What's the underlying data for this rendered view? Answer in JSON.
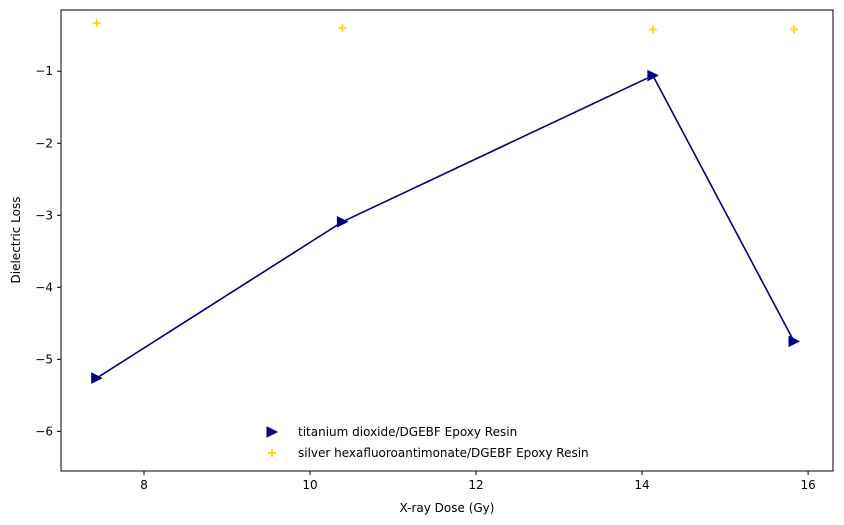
{
  "chart_data": {
    "type": "scatter",
    "xlabel": "X-ray Dose (Gy)",
    "ylabel": "Dielectric Loss",
    "xlim": [
      7.0,
      16.3
    ],
    "ylim": [
      -6.55,
      -0.15
    ],
    "xticks": [
      8,
      10,
      12,
      14,
      16
    ],
    "yticks": [
      -6,
      -5,
      -4,
      -3,
      -2,
      -1
    ],
    "xtick_labels": [
      "8",
      "10",
      "12",
      "14",
      "16"
    ],
    "ytick_labels": [
      "−6",
      "−5",
      "−4",
      "−3",
      "−2",
      "−1"
    ],
    "grid": false,
    "legend_position": "lower-center",
    "series": [
      {
        "name": "titanium dioxide/DGEBF Epoxy Resin",
        "marker": "triangle-right",
        "line": true,
        "color": "#000080",
        "x": [
          7.43,
          10.39,
          14.13,
          15.83
        ],
        "y": [
          -5.26,
          -3.09,
          -1.06,
          -4.75
        ]
      },
      {
        "name": "silver hexafluoroantimonate/DGEBF Epoxy Resin",
        "marker": "plus",
        "line": false,
        "color": "#FFD700",
        "x": [
          7.43,
          10.39,
          14.13,
          15.83
        ],
        "y": [
          -0.33,
          -0.4,
          -0.42,
          -0.42
        ]
      }
    ]
  }
}
